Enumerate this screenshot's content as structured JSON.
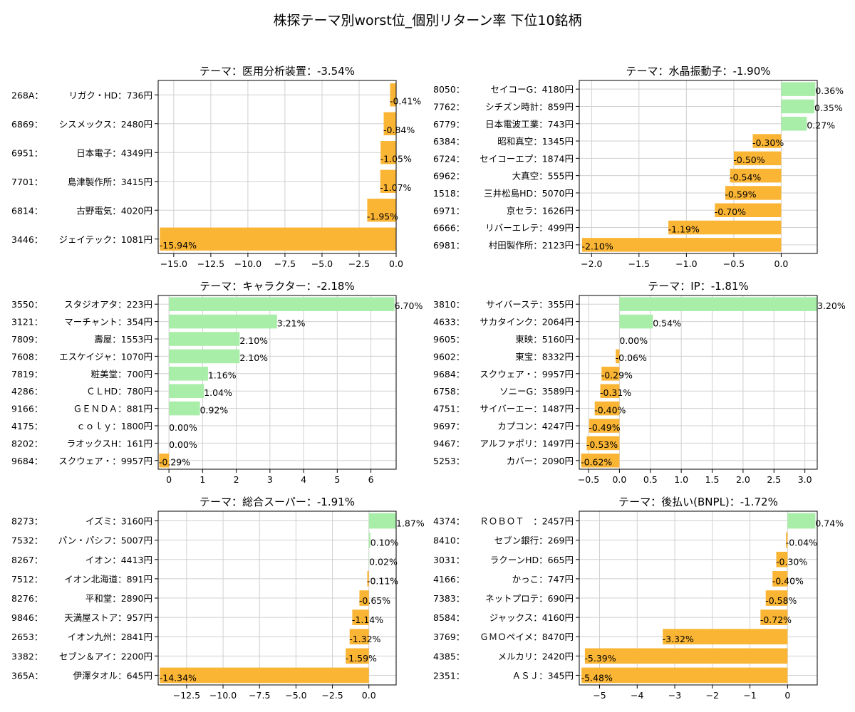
{
  "suptitle": "株探テーマ別worst位_個別リターン率 下位10銘柄",
  "colors": {
    "positive": "#a8eda8",
    "negative": "#fbb535",
    "grid": "#d0d0d0",
    "axis": "#000000"
  },
  "chart_data": [
    {
      "type": "bar",
      "orientation": "horizontal",
      "title": "テーマ：医用分析装置：-3.54%",
      "codes": [
        "268A",
        "6869",
        "6951",
        "7701",
        "6814",
        "3446"
      ],
      "names": [
        "リガク・HD：736円",
        "シスメックス：2480円",
        "日本電子：4349円",
        "島津製作所：3415円",
        "古野電気：4020円",
        "ジェイテック：1081円"
      ],
      "values": [
        -0.41,
        -0.84,
        -1.05,
        -1.07,
        -1.95,
        -15.94
      ],
      "value_labels": [
        "-0.41%",
        "-0.84%",
        "-1.05%",
        "-1.07%",
        "-1.95%",
        "-15.94%"
      ],
      "xlim": [
        -16.05,
        0.0
      ],
      "xticks": [
        -15.0,
        -12.5,
        -10.0,
        -7.5,
        -5.0,
        -2.5,
        0.0
      ],
      "xtick_labels": [
        "−15.0",
        "−12.5",
        "−10.0",
        "−7.5",
        "−5.0",
        "−2.5",
        "0.0"
      ],
      "grid": true
    },
    {
      "type": "bar",
      "orientation": "horizontal",
      "title": "テーマ：水晶振動子：-1.90%",
      "codes": [
        "8050",
        "7762",
        "6779",
        "6384",
        "6724",
        "6962",
        "1518",
        "6971",
        "6666",
        "6981"
      ],
      "names": [
        "セイコーG：4180円",
        "シチズン時計：859円",
        "日本電波工業：743円",
        "昭和真空：1345円",
        "セイコーエプ：1874円",
        "大真空：555円",
        "三井松島HD：5070円",
        "京セラ：1626円",
        "リバーエレテ：499円",
        "村田製作所：2123円"
      ],
      "values": [
        0.36,
        0.35,
        0.27,
        -0.3,
        -0.5,
        -0.54,
        -0.59,
        -0.7,
        -1.19,
        -2.1
      ],
      "value_labels": [
        "0.36%",
        "0.35%",
        "0.27%",
        "-0.30%",
        "-0.50%",
        "-0.54%",
        "-0.59%",
        "-0.70%",
        "-1.19%",
        "-2.10%"
      ],
      "xlim": [
        -2.13,
        0.38
      ],
      "xticks": [
        -2.0,
        -1.5,
        -1.0,
        -0.5,
        0.0
      ],
      "xtick_labels": [
        "−2.0",
        "−1.5",
        "−1.0",
        "−0.5",
        "0.0"
      ],
      "grid": true
    },
    {
      "type": "bar",
      "orientation": "horizontal",
      "title": "テーマ：キャラクター：-2.18%",
      "codes": [
        "3550",
        "3121",
        "7809",
        "7608",
        "7819",
        "4286",
        "9166",
        "4175",
        "8202",
        "9684"
      ],
      "names": [
        "スタジオアタ：223円",
        "マーチャント：354円",
        "壽屋：1553円",
        "エスケイジャ：1070円",
        "粧美堂：700円",
        "ＣＬHD：780円",
        "ＧＥＮＤＡ：881円",
        "ｃｏｌｙ：1800円",
        "ラオックスH：161円",
        "スクウェア・：9957円"
      ],
      "values": [
        6.7,
        3.21,
        2.1,
        2.1,
        1.16,
        1.04,
        0.92,
        0.0,
        0.0,
        -0.29
      ],
      "value_labels": [
        "6.70%",
        "3.21%",
        "2.10%",
        "2.10%",
        "1.16%",
        "1.04%",
        "0.92%",
        "0.00%",
        "0.00%",
        "-0.29%"
      ],
      "xlim": [
        -0.32,
        6.75
      ],
      "xticks": [
        0,
        1,
        2,
        3,
        4,
        5,
        6
      ],
      "xtick_labels": [
        "0",
        "1",
        "2",
        "3",
        "4",
        "5",
        "6"
      ],
      "grid": true
    },
    {
      "type": "bar",
      "orientation": "horizontal",
      "title": "テーマ：IP：-1.81%",
      "codes": [
        "3810",
        "4633",
        "9605",
        "9602",
        "9684",
        "6758",
        "4751",
        "9697",
        "9467",
        "5253"
      ],
      "names": [
        "サイバーステ：355円",
        "サカタインク：2064円",
        "東映：5160円",
        "東宝：8332円",
        "スクウェア・：9957円",
        "ソニーG：3589円",
        "サイバーエー：1487円",
        "カプコン：4247円",
        "アルファポリ：1497円",
        "カバー：2090円"
      ],
      "values": [
        3.2,
        0.54,
        0.0,
        -0.06,
        -0.29,
        -0.31,
        -0.4,
        -0.49,
        -0.53,
        -0.62
      ],
      "value_labels": [
        "3.20%",
        "0.54%",
        "0.00%",
        "-0.06%",
        "-0.29%",
        "-0.31%",
        "-0.40%",
        "-0.49%",
        "-0.53%",
        "-0.62%"
      ],
      "xlim": [
        -0.65,
        3.2
      ],
      "xticks": [
        -0.5,
        0.0,
        0.5,
        1.0,
        1.5,
        2.0,
        2.5,
        3.0
      ],
      "xtick_labels": [
        "−0.5",
        "0.0",
        "0.5",
        "1.0",
        "1.5",
        "2.0",
        "2.5",
        "3.0"
      ],
      "grid": true
    },
    {
      "type": "bar",
      "orientation": "horizontal",
      "title": "テーマ：総合スーパー：-1.91%",
      "codes": [
        "8273",
        "7532",
        "8267",
        "7512",
        "8276",
        "9846",
        "2653",
        "3382",
        "365A"
      ],
      "names": [
        "イズミ：3160円",
        "パン・パシフ：5007円",
        "イオン：4413円",
        "イオン北海道：891円",
        "平和堂：2890円",
        "天満屋ストア：957円",
        "イオン九州：2841円",
        "セブン＆アイ：2200円",
        "伊澤タオル：645円"
      ],
      "values": [
        1.87,
        0.1,
        0.02,
        -0.11,
        -0.65,
        -1.14,
        -1.32,
        -1.59,
        -14.34
      ],
      "value_labels": [
        "1.87%",
        "0.10%",
        "0.02%",
        "-0.11%",
        "-0.65%",
        "-1.14%",
        "-1.32%",
        "-1.59%",
        "-14.34%"
      ],
      "xlim": [
        -14.45,
        1.87
      ],
      "xticks": [
        -12.5,
        -10.0,
        -7.5,
        -5.0,
        -2.5,
        0.0
      ],
      "xtick_labels": [
        "−12.5",
        "−10.0",
        "−7.5",
        "−5.0",
        "−2.5",
        "0.0"
      ],
      "grid": true
    },
    {
      "type": "bar",
      "orientation": "horizontal",
      "title": "テーマ：後払い(BNPL)：-1.72%",
      "codes": [
        "4374",
        "8410",
        "3031",
        "4166",
        "7383",
        "8584",
        "3769",
        "4385",
        "2351"
      ],
      "names": [
        "ＲＯＢＯＴ　：2457円",
        "セブン銀行：269円",
        "ラクーンHD：665円",
        "かっこ：747円",
        "ネットプロテ：690円",
        "ジャックス：4160円",
        "ＧＭＯペイメ：8470円",
        "メルカリ：2420円",
        "ＡＳＪ：345円"
      ],
      "values": [
        0.74,
        -0.04,
        -0.3,
        -0.4,
        -0.58,
        -0.72,
        -3.32,
        -5.39,
        -5.48
      ],
      "value_labels": [
        "0.74%",
        "-0.04%",
        "-0.30%",
        "-0.40%",
        "-0.58%",
        "-0.72%",
        "-3.32%",
        "-5.39%",
        "-5.48%"
      ],
      "xlim": [
        -5.54,
        0.79
      ],
      "xticks": [
        -5,
        -4,
        -3,
        -2,
        -1,
        0
      ],
      "xtick_labels": [
        "−5",
        "−4",
        "−3",
        "−2",
        "−1",
        "0"
      ],
      "grid": true
    }
  ]
}
